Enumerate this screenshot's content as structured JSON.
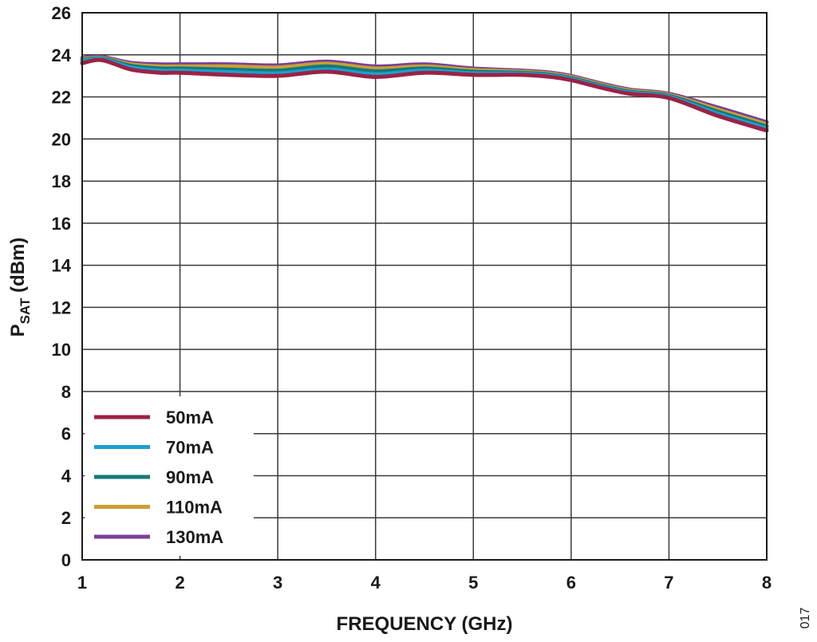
{
  "figure_id": "017",
  "colors": {
    "grid": "#3a3a3a",
    "frame": "#1a1a1a",
    "text": "#1a1a1a"
  },
  "chart_data": {
    "type": "line",
    "xlabel": "FREQUENCY (GHz)",
    "ylabel": {
      "base": "P",
      "subscript": "SAT",
      "suffix": " (dBm)"
    },
    "xlim": [
      1,
      8
    ],
    "ylim": [
      0,
      26
    ],
    "xticks": [
      1,
      2,
      3,
      4,
      5,
      6,
      7,
      8
    ],
    "yticks": [
      0,
      2,
      4,
      6,
      8,
      10,
      12,
      14,
      16,
      18,
      20,
      22,
      24,
      26
    ],
    "grid": true,
    "legend_position": "bottom-left",
    "x": [
      1.0,
      1.2,
      1.5,
      1.8,
      2.0,
      2.5,
      3.0,
      3.5,
      4.0,
      4.5,
      5.0,
      5.5,
      5.8,
      6.0,
      6.3,
      6.6,
      7.0,
      7.5,
      8.0
    ],
    "series": [
      {
        "name": "50mA",
        "color": "#9b2245",
        "values": [
          23.6,
          23.75,
          23.3,
          23.15,
          23.15,
          23.05,
          23.0,
          23.2,
          22.95,
          23.15,
          23.05,
          23.05,
          22.95,
          22.8,
          22.45,
          22.15,
          21.95,
          21.1,
          20.4
        ]
      },
      {
        "name": "70mA",
        "color": "#1aa0d0",
        "values": [
          23.7,
          23.8,
          23.4,
          23.25,
          23.25,
          23.18,
          23.12,
          23.3,
          23.08,
          23.25,
          23.12,
          23.1,
          23.0,
          22.85,
          22.5,
          22.2,
          22.0,
          21.2,
          20.5
        ]
      },
      {
        "name": "90mA",
        "color": "#137a7a",
        "values": [
          23.75,
          23.83,
          23.48,
          23.35,
          23.35,
          23.3,
          23.25,
          23.45,
          23.22,
          23.35,
          23.2,
          23.15,
          23.05,
          22.9,
          22.55,
          22.25,
          22.05,
          21.3,
          20.6
        ]
      },
      {
        "name": "110mA",
        "color": "#c9a032",
        "values": [
          23.8,
          23.86,
          23.55,
          23.45,
          23.45,
          23.45,
          23.4,
          23.58,
          23.35,
          23.45,
          23.28,
          23.2,
          23.1,
          22.95,
          22.6,
          22.3,
          22.1,
          21.4,
          20.7
        ]
      },
      {
        "name": "130mA",
        "color": "#7b3f98",
        "values": [
          23.85,
          23.9,
          23.62,
          23.55,
          23.55,
          23.55,
          23.5,
          23.68,
          23.45,
          23.55,
          23.35,
          23.25,
          23.15,
          23.0,
          22.65,
          22.35,
          22.15,
          21.5,
          20.8
        ]
      }
    ]
  }
}
